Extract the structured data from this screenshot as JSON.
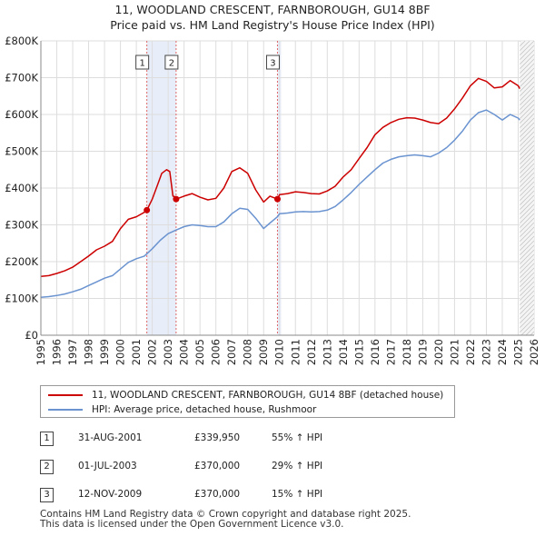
{
  "chart_data": {
    "type": "line",
    "title": "11, WOODLAND CRESCENT, FARNBOROUGH, GU14 8BF",
    "subtitle": "Price paid vs. HM Land Registry's House Price Index (HPI)",
    "xlim": [
      1995,
      2026
    ],
    "ylim": [
      0,
      800000
    ],
    "y_ticks": [
      0,
      100000,
      200000,
      300000,
      400000,
      500000,
      600000,
      700000,
      800000
    ],
    "y_tick_labels": [
      "£0",
      "£100K",
      "£200K",
      "£300K",
      "£400K",
      "£500K",
      "£600K",
      "£700K",
      "£800K"
    ],
    "x_ticks": [
      1995,
      1996,
      1997,
      1998,
      1999,
      2000,
      2001,
      2002,
      2003,
      2004,
      2005,
      2006,
      2007,
      2008,
      2009,
      2010,
      2011,
      2012,
      2013,
      2014,
      2015,
      2016,
      2017,
      2018,
      2019,
      2020,
      2021,
      2022,
      2023,
      2024,
      2025,
      2026
    ],
    "x_tick_labels": [
      "1995",
      "1996",
      "1997",
      "1998",
      "1999",
      "2000",
      "2001",
      "2002",
      "2003",
      "2004",
      "2005",
      "2006",
      "2007",
      "2008",
      "2009",
      "2010",
      "2011",
      "2012",
      "2013",
      "2014",
      "2015",
      "2016",
      "2017",
      "2018",
      "2019",
      "2020",
      "2021",
      "2022",
      "2023",
      "2024",
      "2025",
      "2026"
    ],
    "grid": true,
    "data_end_year": 2025.1,
    "shaded_spans": [
      [
        2001.66,
        2003.5
      ],
      [
        2009.87,
        2010.1
      ]
    ],
    "series": [
      {
        "name": "11, WOODLAND CRESCENT, FARNBOROUGH, GU14 8BF (detached house)",
        "color": "#cc0000",
        "x": [
          1995.0,
          1995.5,
          1996.0,
          1996.5,
          1997.0,
          1997.5,
          1998.0,
          1998.5,
          1999.0,
          1999.5,
          2000.0,
          2000.5,
          2001.0,
          2001.5,
          2001.66,
          2002.0,
          2002.3,
          2002.6,
          2002.9,
          2003.1,
          2003.3,
          2003.45,
          2003.5,
          2004.0,
          2004.5,
          2005.0,
          2005.5,
          2006.0,
          2006.5,
          2007.0,
          2007.5,
          2008.0,
          2008.5,
          2009.0,
          2009.4,
          2009.87,
          2010.0,
          2010.5,
          2011.0,
          2011.5,
          2012.0,
          2012.5,
          2013.0,
          2013.5,
          2014.0,
          2014.5,
          2015.0,
          2015.5,
          2016.0,
          2016.5,
          2017.0,
          2017.5,
          2018.0,
          2018.5,
          2019.0,
          2019.5,
          2020.0,
          2020.5,
          2021.0,
          2021.5,
          2022.0,
          2022.5,
          2023.0,
          2023.5,
          2024.0,
          2024.5,
          2025.0,
          2025.1
        ],
        "values": [
          160000,
          162000,
          168000,
          175000,
          185000,
          200000,
          215000,
          232000,
          242000,
          255000,
          290000,
          315000,
          322000,
          334000,
          339950,
          370000,
          405000,
          440000,
          450000,
          445000,
          378000,
          376000,
          370000,
          378000,
          385000,
          375000,
          368000,
          372000,
          400000,
          445000,
          455000,
          440000,
          395000,
          362000,
          378000,
          370000,
          382000,
          385000,
          390000,
          388000,
          385000,
          384000,
          392000,
          405000,
          430000,
          450000,
          480000,
          510000,
          545000,
          565000,
          578000,
          587000,
          591000,
          590000,
          585000,
          578000,
          575000,
          590000,
          615000,
          645000,
          678000,
          698000,
          690000,
          672000,
          675000,
          692000,
          678000,
          670000
        ]
      },
      {
        "name": "HPI: Average price, detached house, Rushmoor",
        "color": "#6a93d0",
        "x": [
          1995.0,
          1995.5,
          1996.0,
          1996.5,
          1997.0,
          1997.5,
          1998.0,
          1998.5,
          1999.0,
          1999.5,
          2000.0,
          2000.5,
          2001.0,
          2001.5,
          2002.0,
          2002.5,
          2003.0,
          2003.5,
          2004.0,
          2004.5,
          2005.0,
          2005.5,
          2006.0,
          2006.5,
          2007.0,
          2007.5,
          2008.0,
          2008.5,
          2009.0,
          2009.4,
          2009.87,
          2010.0,
          2010.5,
          2011.0,
          2011.5,
          2012.0,
          2012.5,
          2013.0,
          2013.5,
          2014.0,
          2014.5,
          2015.0,
          2015.5,
          2016.0,
          2016.5,
          2017.0,
          2017.5,
          2018.0,
          2018.5,
          2019.0,
          2019.5,
          2020.0,
          2020.5,
          2021.0,
          2021.5,
          2022.0,
          2022.5,
          2023.0,
          2023.5,
          2024.0,
          2024.5,
          2025.0,
          2025.1
        ],
        "values": [
          103000,
          105000,
          108000,
          112000,
          118000,
          125000,
          135000,
          145000,
          155000,
          162000,
          180000,
          198000,
          208000,
          215000,
          235000,
          258000,
          276000,
          286000,
          295000,
          300000,
          298000,
          295000,
          295000,
          308000,
          330000,
          345000,
          342000,
          318000,
          290000,
          305000,
          322000,
          330000,
          332000,
          335000,
          336000,
          335000,
          336000,
          340000,
          350000,
          368000,
          388000,
          410000,
          430000,
          450000,
          468000,
          478000,
          485000,
          488000,
          490000,
          488000,
          485000,
          495000,
          510000,
          530000,
          555000,
          585000,
          605000,
          612000,
          600000,
          585000,
          600000,
          590000,
          585000
        ]
      }
    ],
    "sales": [
      {
        "id": "1",
        "x": 2001.66,
        "value": 339950
      },
      {
        "id": "2",
        "x": 2003.5,
        "value": 370000
      },
      {
        "id": "3",
        "x": 2009.87,
        "value": 370000
      }
    ]
  },
  "legend": {
    "property_label": "11, WOODLAND CRESCENT, FARNBOROUGH, GU14 8BF (detached house)",
    "hpi_label": "HPI: Average price, detached house, Rushmoor",
    "property_color": "#cc0000",
    "hpi_color": "#6a93d0"
  },
  "transactions": [
    {
      "id": "1",
      "date": "31-AUG-2001",
      "price": "£339,950",
      "hpi": "55% ↑ HPI"
    },
    {
      "id": "2",
      "date": "01-JUL-2003",
      "price": "£370,000",
      "hpi": "29% ↑ HPI"
    },
    {
      "id": "3",
      "date": "12-NOV-2009",
      "price": "£370,000",
      "hpi": "15% ↑ HPI"
    }
  ],
  "footer": {
    "line1": "Contains HM Land Registry data © Crown copyright and database right 2025.",
    "line2": "This data is licensed under the Open Government Licence v3.0."
  }
}
